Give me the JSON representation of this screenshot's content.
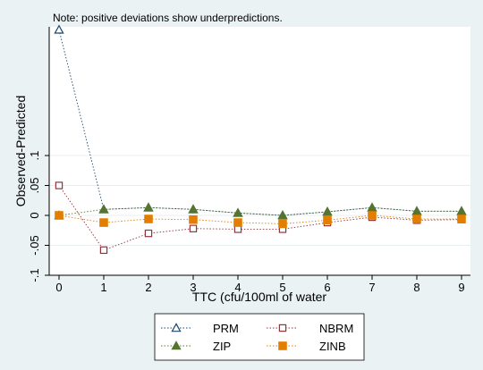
{
  "chart_data": {
    "type": "line",
    "note": "Note: positive deviations show underpredictions.",
    "xlabel": "TTC (cfu/100ml of water",
    "ylabel": "Observed-Predicted",
    "x": [
      0,
      1,
      2,
      3,
      4,
      5,
      6,
      7,
      8,
      9
    ],
    "xlim": [
      0,
      9
    ],
    "ylim": [
      -0.1,
      0.315
    ],
    "xticks": [
      "0",
      "1",
      "2",
      "3",
      "4",
      "5",
      "6",
      "7",
      "8",
      "9"
    ],
    "yticks": [
      {
        "value": -0.1,
        "label": "-.1"
      },
      {
        "value": -0.05,
        "label": "-.05"
      },
      {
        "value": 0,
        "label": "0"
      },
      {
        "value": 0.05,
        "label": ".05"
      },
      {
        "value": 0.1,
        "label": ".1"
      }
    ],
    "grid": true,
    "legend_position": "bottom",
    "series": [
      {
        "name": "PRM",
        "marker": "hollow-triangle",
        "color": "#1a476f",
        "values": [
          0.31,
          0.01,
          0.013,
          0.01,
          0.004,
          0.0,
          0.006,
          0.013,
          0.007,
          0.007
        ]
      },
      {
        "name": "NBRM",
        "marker": "hollow-square",
        "color": "#90353b",
        "values": [
          0.05,
          -0.058,
          -0.03,
          -0.022,
          -0.023,
          -0.023,
          -0.012,
          -0.003,
          -0.008,
          -0.007
        ]
      },
      {
        "name": "ZIP",
        "marker": "filled-triangle",
        "color": "#55752f",
        "values": [
          0.0,
          0.01,
          0.013,
          0.01,
          0.004,
          0.0,
          0.006,
          0.013,
          0.007,
          0.007
        ]
      },
      {
        "name": "ZINB",
        "marker": "filled-square",
        "color": "#e37e00",
        "values": [
          0.0,
          -0.012,
          -0.006,
          -0.007,
          -0.012,
          -0.014,
          -0.008,
          0.0,
          -0.006,
          -0.006
        ]
      }
    ]
  }
}
